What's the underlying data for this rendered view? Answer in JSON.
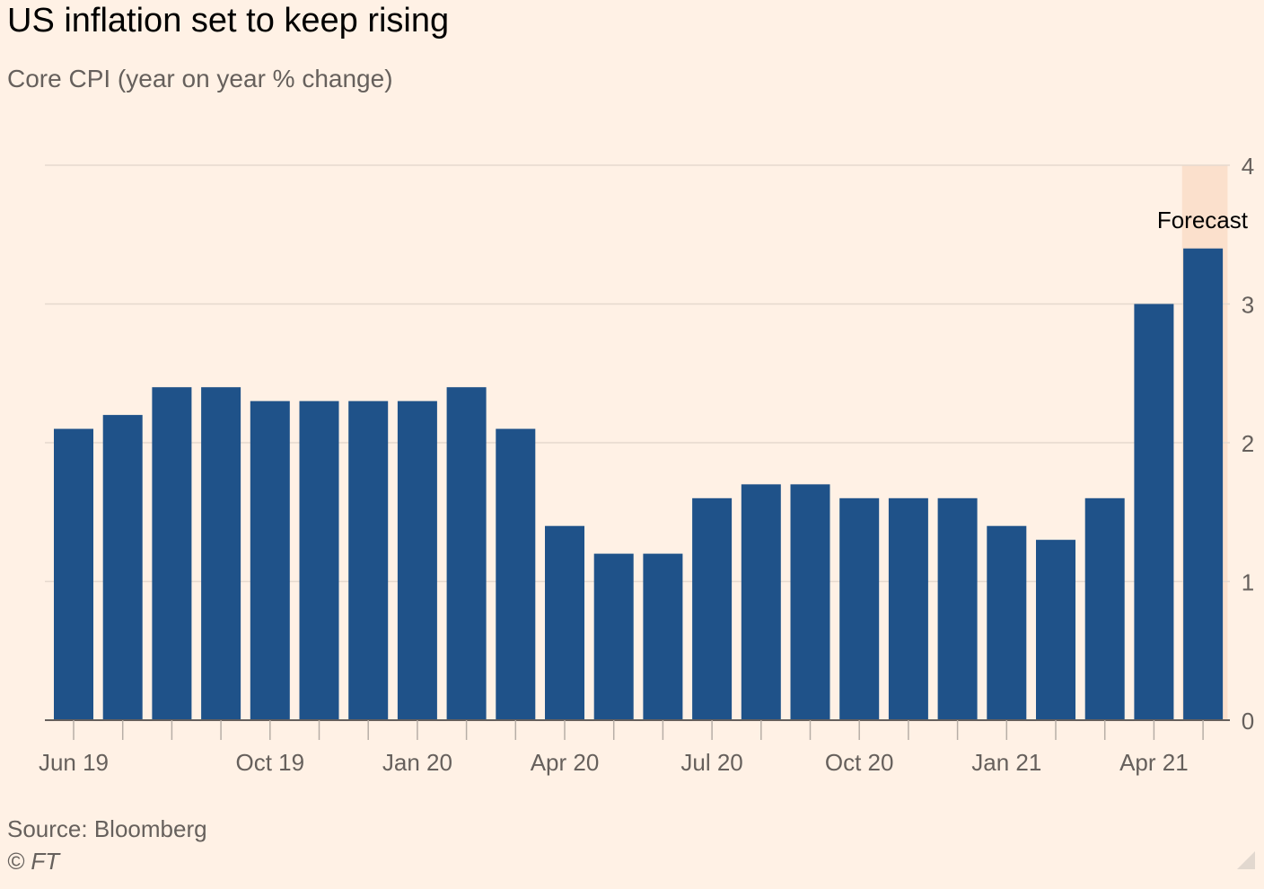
{
  "title": "US inflation set to keep rising",
  "subtitle": "Core CPI (year on year % change)",
  "source": "Source: Bloomberg",
  "copyright": "© FT",
  "colors": {
    "background": "#fff1e5",
    "bar": "#1f5289",
    "grid": "#e6d9ce",
    "forecast_shade": "#fbe0cc",
    "text": "#66605c"
  },
  "chart_data": {
    "type": "bar",
    "categories": [
      "Jun 19",
      "Jul 19",
      "Aug 19",
      "Sep 19",
      "Oct 19",
      "Nov 19",
      "Dec 19",
      "Jan 20",
      "Feb 20",
      "Mar 20",
      "Apr 20",
      "May 20",
      "Jun 20",
      "Jul 20",
      "Aug 20",
      "Sep 20",
      "Oct 20",
      "Nov 20",
      "Dec 20",
      "Jan 21",
      "Feb 21",
      "Mar 21",
      "Apr 21",
      "May 21"
    ],
    "values": [
      2.1,
      2.2,
      2.4,
      2.4,
      2.3,
      2.3,
      2.3,
      2.3,
      2.4,
      2.1,
      1.4,
      1.2,
      1.2,
      1.6,
      1.7,
      1.7,
      1.6,
      1.6,
      1.6,
      1.4,
      1.3,
      1.6,
      3.0,
      3.4
    ],
    "x_tick_labels": [
      {
        "category": "Jun 19",
        "label": "Jun 19"
      },
      {
        "category": "Oct 19",
        "label": "Oct 19"
      },
      {
        "category": "Jan 20",
        "label": "Jan 20"
      },
      {
        "category": "Apr 20",
        "label": "Apr 20"
      },
      {
        "category": "Jul 20",
        "label": "Jul 20"
      },
      {
        "category": "Oct 20",
        "label": "Oct 20"
      },
      {
        "category": "Jan 21",
        "label": "Jan 21"
      },
      {
        "category": "Apr 21",
        "label": "Apr 21"
      }
    ],
    "yticks": [
      "0",
      "1",
      "2",
      "3",
      "4"
    ],
    "ylim": [
      0,
      4
    ],
    "y_axis_side": "right",
    "grid": true,
    "forecast": {
      "label": "Forecast",
      "categories": [
        "May 21"
      ]
    }
  }
}
